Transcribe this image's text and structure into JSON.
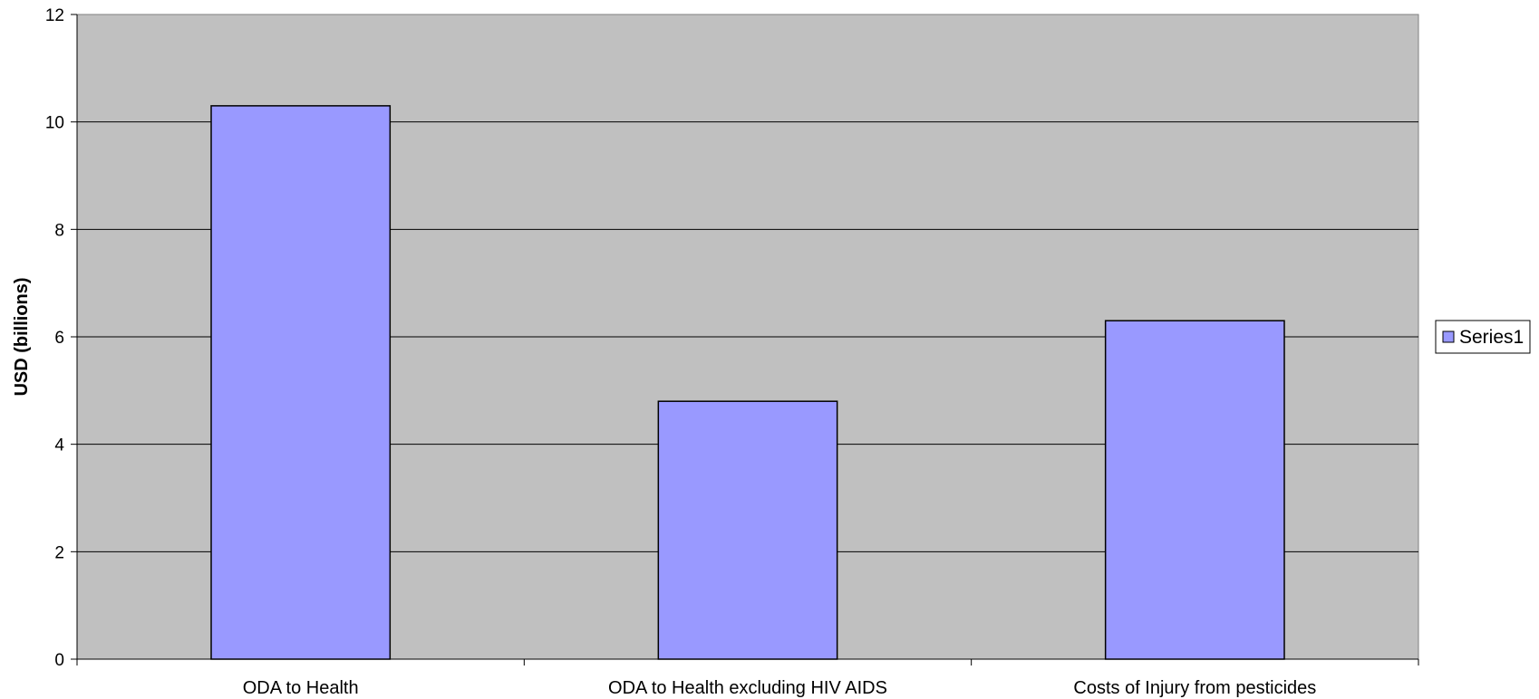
{
  "chart_data": {
    "type": "bar",
    "title": "",
    "xlabel": "",
    "ylabel": "USD (billions)",
    "categories": [
      "ODA to Health",
      "ODA to Health excluding HIV AIDS",
      "Costs of Injury from pesticides"
    ],
    "series": [
      {
        "name": "Series1",
        "values": [
          10.3,
          4.8,
          6.3
        ],
        "color": "#9999ff"
      }
    ],
    "ylim": [
      0,
      12
    ],
    "yticks": [
      "0",
      "2",
      "4",
      "6",
      "8",
      "10",
      "12"
    ],
    "grid": true,
    "legend": "right",
    "plot_background": "#c0c0c0",
    "gridline_color": "#000000"
  }
}
